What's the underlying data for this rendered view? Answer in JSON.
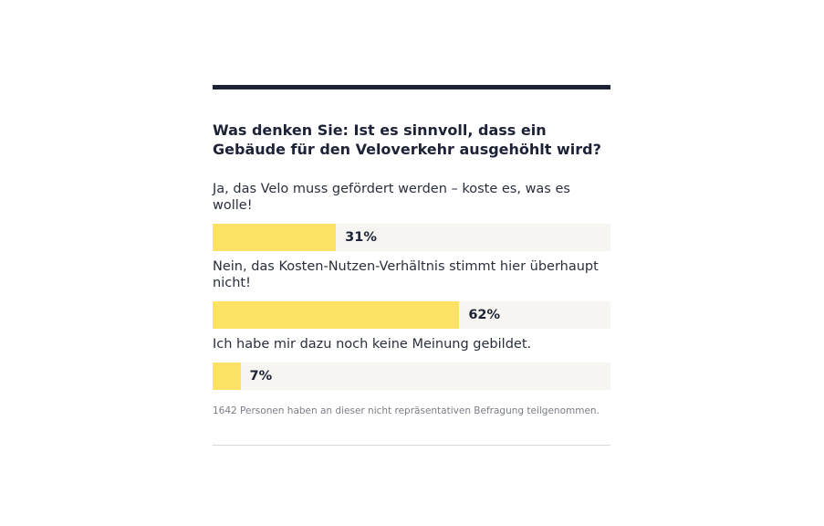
{
  "poll": {
    "question": "Was denken Sie: Ist es sinnvoll, dass ein Gebäude für den Veloverkehr ausgehöhlt wird?",
    "answers": [
      {
        "label": "Ja, das Velo muss gefördert werden – koste es, was es wolle!",
        "percent": 31,
        "percent_label": "31%"
      },
      {
        "label": "Nein, das Kosten-Nutzen-Verhältnis stimmt hier überhaupt nicht!",
        "percent": 62,
        "percent_label": "62%"
      },
      {
        "label": "Ich habe mir dazu noch keine Meinung gebildet.",
        "percent": 7,
        "percent_label": "7%"
      }
    ],
    "footnote": "1642 Personen haben an dieser nicht repräsentativen Befragung teilgenommen."
  },
  "colors": {
    "accent": "#fee265",
    "track": "#f6f5f1",
    "rule": "#1d2236"
  }
}
